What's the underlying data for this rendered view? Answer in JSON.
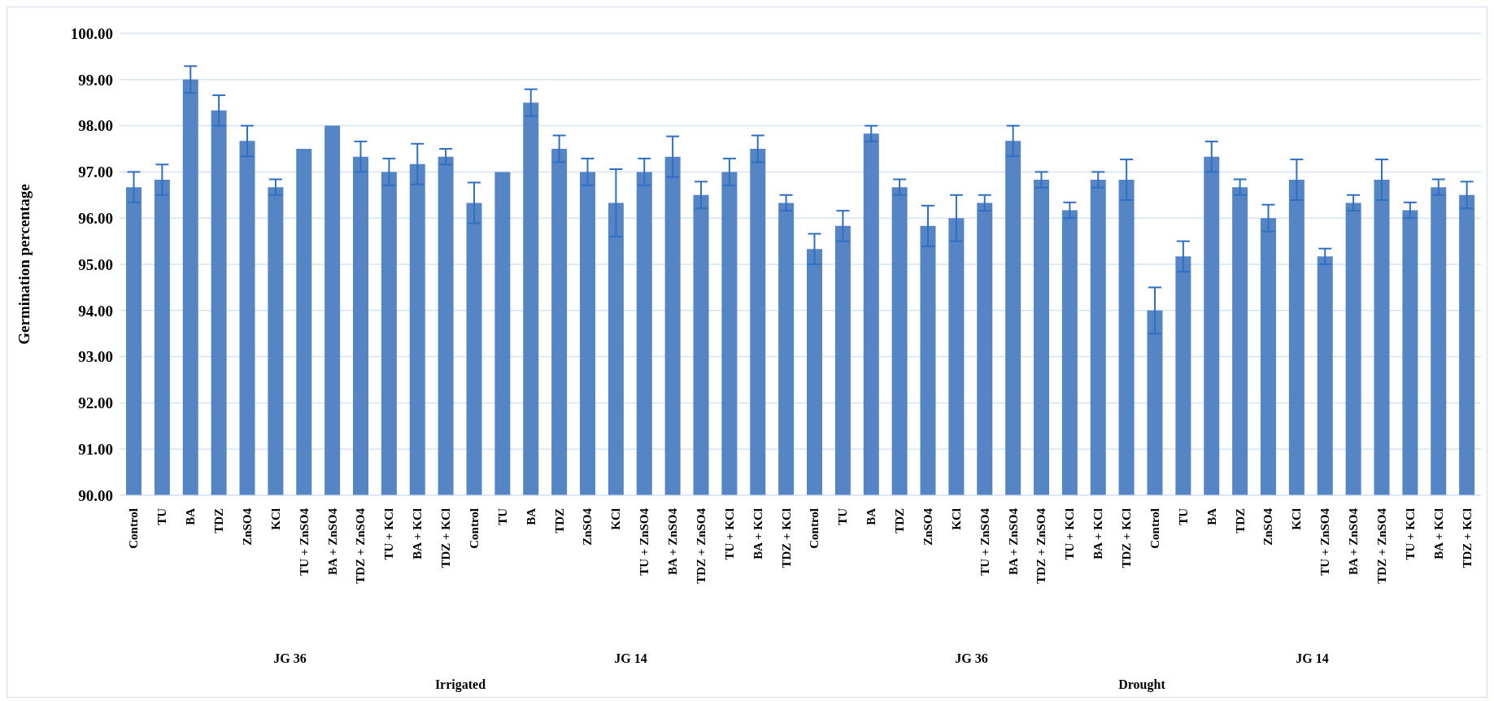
{
  "chart_data": {
    "type": "bar",
    "ylabel": "Germination percentage",
    "categories": [
      "Control",
      "TU",
      "BA",
      "TDZ",
      "ZnSO4",
      "KCl",
      "TU + ZnSO4",
      "BA + ZnSO4",
      "TDZ + ZnSO4",
      "TU + KCl",
      "BA + KCl",
      "TDZ + KCl",
      "Control",
      "TU",
      "BA",
      "TDZ",
      "ZnSO4",
      "KCl",
      "TU + ZnSO4",
      "BA + ZnSO4",
      "TDZ + ZnSO4",
      "TU + KCl",
      "BA + KCl",
      "TDZ + KCl",
      "Control",
      "TU",
      "BA",
      "TDZ",
      "ZnSO4",
      "KCl",
      "TU + ZnSO4",
      "BA + ZnSO4",
      "TDZ + ZnSO4",
      "TU + KCl",
      "BA + KCl",
      "TDZ + KCl",
      "Control",
      "TU",
      "BA",
      "TDZ",
      "ZnSO4",
      "KCl",
      "TU + ZnSO4",
      "BA + ZnSO4",
      "TDZ + ZnSO4",
      "TU + KCl",
      "BA + KCl",
      "TDZ + KCl"
    ],
    "values": [
      96.67,
      96.83,
      99.0,
      98.33,
      97.67,
      96.67,
      97.5,
      98.0,
      97.33,
      97.0,
      97.17,
      97.33,
      96.33,
      97.0,
      98.5,
      97.5,
      97.0,
      96.33,
      97.0,
      97.33,
      96.5,
      97.0,
      97.5,
      96.33,
      95.33,
      95.83,
      97.83,
      96.67,
      95.83,
      96.0,
      96.33,
      97.67,
      96.83,
      96.17,
      96.83,
      96.83,
      94.0,
      95.17,
      97.33,
      96.67,
      96.0,
      96.83,
      95.17,
      96.33,
      96.83,
      96.17,
      96.67,
      96.5
    ],
    "errors": [
      0.33,
      0.33,
      0.29,
      0.33,
      0.33,
      0.17,
      0,
      0,
      0.33,
      0.29,
      0.44,
      0.17,
      0.44,
      0,
      0.29,
      0.29,
      0.29,
      0.73,
      0.29,
      0.44,
      0.29,
      0.29,
      0.29,
      0.17,
      0.33,
      0.33,
      0.17,
      0.17,
      0.44,
      0.5,
      0.17,
      0.33,
      0.17,
      0.17,
      0.17,
      0.44,
      0.5,
      0.33,
      0.33,
      0.17,
      0.29,
      0.44,
      0.17,
      0.17,
      0.44,
      0.17,
      0.17,
      0.29
    ],
    "color": "#5585c5",
    "ylim": [
      90,
      100
    ],
    "yticks": [
      {
        "value": 90,
        "label": "90.00"
      },
      {
        "value": 91,
        "label": "91.00"
      },
      {
        "value": 92,
        "label": "92.00"
      },
      {
        "value": 93,
        "label": "93.00"
      },
      {
        "value": 94,
        "label": "94.00"
      },
      {
        "value": 95,
        "label": "95.00"
      },
      {
        "value": 96,
        "label": "96.00"
      },
      {
        "value": 97,
        "label": "97.00"
      },
      {
        "value": 98,
        "label": "98.00"
      },
      {
        "value": 99,
        "label": "99.00"
      },
      {
        "value": 100,
        "label": "100.00"
      }
    ],
    "grid": "y",
    "annotations": [
      "JG 36",
      "JG 14",
      "JG 36",
      "JG 14",
      "Irrigated",
      "Drought"
    ]
  }
}
